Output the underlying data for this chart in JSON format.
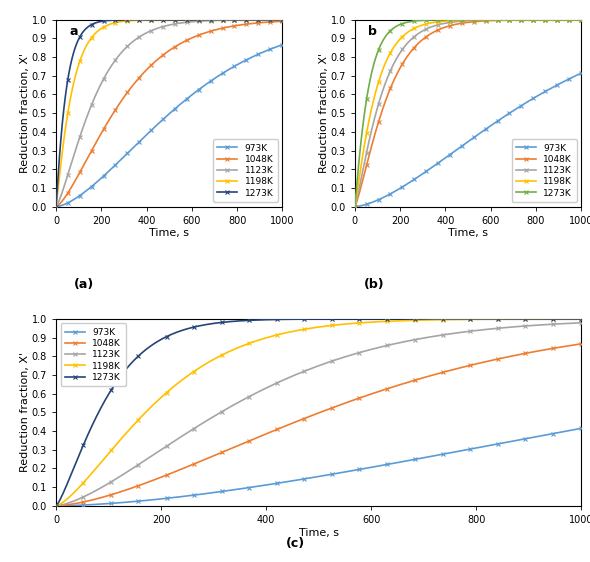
{
  "temperatures": [
    "973K",
    "1048K",
    "1123K",
    "1198K",
    "1273K"
  ],
  "colors_a": {
    "973K": "#5B9BD5",
    "1048K": "#ED7D31",
    "1123K": "#A5A5A5",
    "1198K": "#FFC000",
    "1273K": "#264478"
  },
  "colors_b": {
    "973K": "#5B9BD5",
    "1048K": "#ED7D31",
    "1123K": "#A5A5A5",
    "1198K": "#FFC000",
    "1273K": "#70AD47"
  },
  "colors_c": {
    "973K": "#5B9BD5",
    "1048K": "#ED7D31",
    "1123K": "#A5A5A5",
    "1198K": "#FFC000",
    "1273K": "#264478"
  },
  "curves_a": {
    "973K": {
      "k": 4.5e-05,
      "n": 1.55
    },
    "1048K": {
      "k": 0.0003,
      "n": 1.4
    },
    "1123K": {
      "k": 0.0011,
      "n": 1.3
    },
    "1198K": {
      "k": 0.009,
      "n": 1.1
    },
    "1273K": {
      "k": 0.018,
      "n": 1.05
    }
  },
  "curves_b": {
    "973K": {
      "k": 2.8e-05,
      "n": 1.55
    },
    "1048K": {
      "k": 0.0018,
      "n": 1.25
    },
    "1123K": {
      "k": 0.003,
      "n": 1.2
    },
    "1198K": {
      "k": 0.006,
      "n": 1.12
    },
    "1273K": {
      "k": 0.012,
      "n": 1.08
    }
  },
  "curves_c": {
    "973K": {
      "k": 6e-06,
      "n": 1.65
    },
    "1048K": {
      "k": 4.5e-05,
      "n": 1.55
    },
    "1123K": {
      "k": 0.00014,
      "n": 1.48
    },
    "1198K": {
      "k": 0.00052,
      "n": 1.4
    },
    "1273K": {
      "k": 0.0025,
      "n": 1.28
    }
  },
  "xlabel": "Time, s",
  "ylabel": "Reduction fraction, X'",
  "xlim": [
    0,
    1000
  ],
  "ylim": [
    0,
    1
  ],
  "yticks_ab": [
    0,
    0.1,
    0.2,
    0.3,
    0.4,
    0.5,
    0.6,
    0.7,
    0.8,
    0.9,
    1
  ],
  "yticks_c": [
    0,
    0.1,
    0.2,
    0.3,
    0.4,
    0.5,
    0.6,
    0.7,
    0.8,
    0.9,
    1
  ],
  "xticks": [
    0,
    200,
    400,
    600,
    800,
    1000
  ],
  "linewidth": 1.2,
  "markersize": 3.5,
  "n_markers": 20,
  "tick_fontsize": 7,
  "label_fontsize": 8,
  "legend_fontsize": 6.5
}
